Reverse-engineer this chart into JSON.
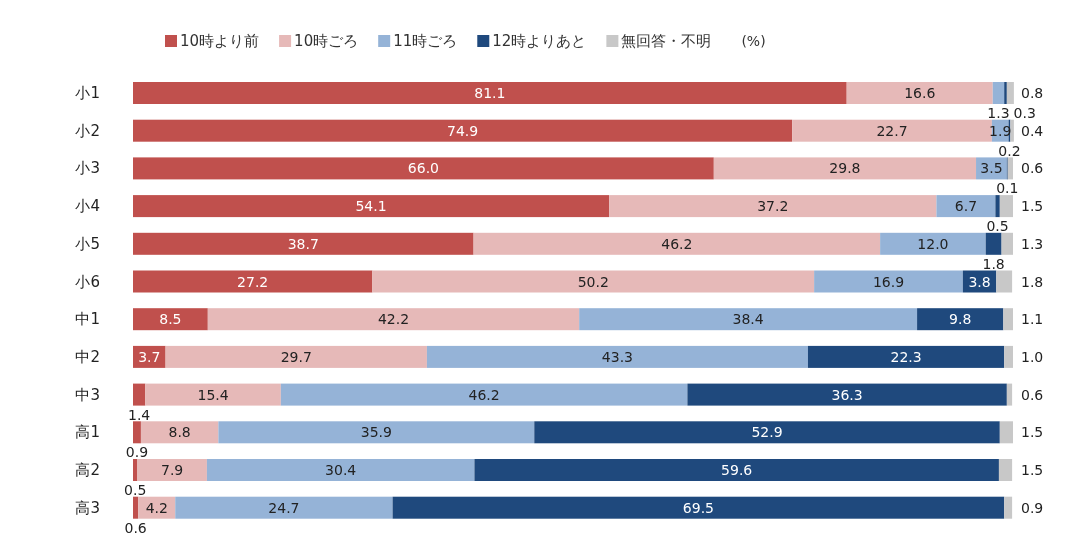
{
  "chart_data": {
    "type": "bar",
    "orientation": "horizontal",
    "stacked": true,
    "data_labels": true,
    "legend": "top",
    "tick_labels": "y",
    "grid": false,
    "xlim": [
      0,
      100
    ],
    "categories": [
      "小1",
      "小2",
      "小3",
      "小4",
      "小5",
      "小6",
      "中1",
      "中2",
      "中3",
      "高1",
      "高2",
      "高3"
    ],
    "series": [
      {
        "name": "10時より前",
        "color": "#c0504d",
        "values": [
          81.1,
          74.9,
          66.0,
          54.1,
          38.7,
          27.2,
          8.5,
          3.7,
          1.4,
          0.9,
          0.5,
          0.6
        ],
        "value_labels": [
          "81.1",
          "74.9",
          "66.0",
          "54.1",
          "38.7",
          "27.2",
          "8.5",
          "3.7",
          "1.4",
          "0.9",
          "0.5",
          "0.6"
        ]
      },
      {
        "name": "10時ごろ",
        "color": "#e6b9b8",
        "values": [
          16.6,
          22.7,
          29.8,
          37.2,
          46.2,
          50.2,
          42.2,
          29.7,
          15.4,
          8.8,
          7.9,
          4.2
        ],
        "value_labels": [
          "16.6",
          "22.7",
          "29.8",
          "37.2",
          "46.2",
          "50.2",
          "42.2",
          "29.7",
          "15.4",
          "8.8",
          "7.9",
          "4.2"
        ]
      },
      {
        "name": "11時ごろ",
        "color": "#95b3d7",
        "values": [
          1.3,
          1.9,
          3.5,
          6.7,
          12.0,
          16.9,
          38.4,
          43.3,
          46.2,
          35.9,
          30.4,
          24.7
        ],
        "value_labels": [
          "1.3",
          "1.9",
          "3.5",
          "6.7",
          "12.0",
          "16.9",
          "38.4",
          "43.3",
          "46.2",
          "35.9",
          "30.4",
          "24.7"
        ]
      },
      {
        "name": "12時よりあと",
        "color": "#1f497d",
        "values": [
          0.3,
          0.2,
          0.1,
          0.5,
          1.8,
          3.8,
          9.8,
          22.3,
          36.3,
          52.9,
          59.6,
          69.5
        ],
        "value_labels": [
          "0.3",
          "0.2",
          "0.1",
          "0.5",
          "1.8",
          "3.8",
          "9.8",
          "22.3",
          "36.3",
          "52.9",
          "59.6",
          "69.5"
        ]
      },
      {
        "name": "無回答・不明",
        "color": "#c8c8c8",
        "values": [
          0.8,
          0.4,
          0.6,
          1.5,
          1.3,
          1.8,
          1.1,
          1.0,
          0.6,
          1.5,
          1.5,
          0.9
        ],
        "value_labels": [
          "0.8",
          "0.4",
          "0.6",
          "1.5",
          "1.3",
          "1.8",
          "1.1",
          "1.0",
          "0.6",
          "1.5",
          "1.5",
          "0.9"
        ]
      }
    ],
    "annotations": [
      "(%)"
    ]
  }
}
